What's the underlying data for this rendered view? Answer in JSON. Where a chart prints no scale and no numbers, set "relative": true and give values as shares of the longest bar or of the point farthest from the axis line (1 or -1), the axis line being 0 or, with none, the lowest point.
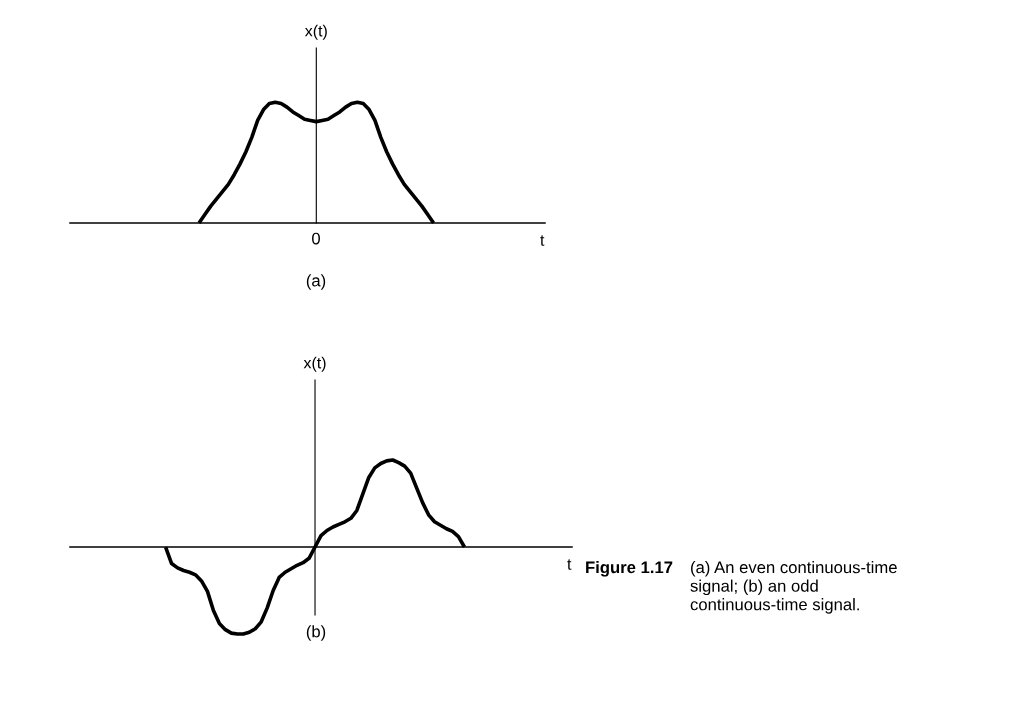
{
  "chart_data": [
    {
      "type": "line",
      "ylabel": "x(t)",
      "xlabel": "t",
      "relative": true,
      "line_style": "solid",
      "annotations": [
        "0",
        "(a)"
      ],
      "categories": [
        null,
        null,
        null,
        null,
        null,
        null,
        null,
        null,
        null,
        null,
        null,
        null,
        null,
        null,
        null,
        null,
        null,
        null,
        null,
        null,
        null,
        null,
        null,
        null,
        null,
        null,
        null,
        null,
        null,
        null,
        null,
        null,
        null,
        null,
        null,
        null,
        null,
        null,
        null,
        null,
        null,
        null,
        null,
        null,
        null,
        null,
        null,
        null,
        null,
        null,
        null,
        null,
        null,
        null,
        null,
        null,
        null,
        null,
        null,
        null,
        null,
        null,
        null,
        null,
        null,
        null,
        null,
        null,
        null,
        null,
        null,
        null,
        null,
        null,
        null,
        null,
        null,
        null,
        null,
        null,
        null,
        null
      ],
      "series": [
        {
          "color": "#000000",
          "values": [
            null,
            null,
            null,
            null,
            null,
            null,
            null,
            null,
            null,
            null,
            null,
            null,
            null,
            null,
            null,
            null,
            null,
            null,
            null,
            null,
            null,
            null,
            0,
            0.07,
            0.14,
            0.2,
            0.26,
            0.32,
            0.4,
            0.49,
            0.59,
            0.71,
            0.85,
            0.94,
            0.99,
            1,
            0.99,
            0.96,
            0.92,
            0.89,
            0.86,
            0.85,
            0.84,
            0.85,
            0.86,
            0.89,
            0.92,
            0.96,
            0.99,
            1,
            0.99,
            0.94,
            0.85,
            0.71,
            0.59,
            0.49,
            0.4,
            0.32,
            0.26,
            0.2,
            0.14,
            0.07,
            0,
            null,
            null,
            null,
            null,
            null,
            null,
            null,
            null,
            null,
            null,
            null,
            null,
            null,
            null,
            null,
            null,
            null,
            null,
            null
          ]
        }
      ]
    },
    {
      "type": "line",
      "ylabel": "x(t)",
      "xlabel": "t",
      "relative": true,
      "line_style": "solid",
      "annotations": [
        "(b)",
        "Figure 1.17",
        "(a) An even continuous-time signal; (b) an odd continuous-time signal."
      ],
      "categories": [
        null,
        null,
        null,
        null,
        null,
        null,
        null,
        null,
        null,
        null,
        null,
        null,
        null,
        null,
        null,
        null,
        null,
        null,
        null,
        null,
        null,
        null,
        null,
        null,
        null,
        null,
        null,
        null,
        null,
        null,
        null,
        null,
        null,
        null,
        null,
        null,
        null,
        null,
        null,
        null,
        null,
        null,
        null,
        null,
        null,
        null,
        null,
        null,
        null,
        null,
        null,
        null,
        null,
        null,
        null,
        null,
        null,
        null,
        null,
        null,
        null,
        null,
        null,
        null,
        null,
        null,
        null,
        null,
        null,
        null,
        null,
        null,
        null,
        null,
        null,
        null,
        null,
        null,
        null,
        null,
        null,
        null,
        null,
        null,
        null
      ],
      "series": [
        {
          "color": "#000000",
          "values": [
            null,
            null,
            null,
            null,
            null,
            null,
            null,
            null,
            null,
            null,
            null,
            null,
            null,
            null,
            null,
            null,
            0,
            -0.19,
            -0.24,
            -0.27,
            -0.29,
            -0.32,
            -0.39,
            -0.51,
            -0.73,
            -0.88,
            -0.95,
            -0.99,
            -1,
            -1,
            -0.98,
            -0.94,
            -0.86,
            -0.7,
            -0.5,
            -0.35,
            -0.29,
            -0.25,
            -0.21,
            -0.18,
            -0.13,
            0,
            0.13,
            0.19,
            0.23,
            0.26,
            0.29,
            0.33,
            0.42,
            0.61,
            0.8,
            0.91,
            0.96,
            0.99,
            1,
            0.97,
            0.93,
            0.85,
            0.68,
            0.51,
            0.37,
            0.29,
            0.25,
            0.21,
            0.18,
            0.12,
            0,
            null,
            null,
            null,
            null,
            null,
            null,
            null,
            null,
            null,
            null,
            null,
            null,
            null,
            null,
            null,
            null,
            null,
            null
          ]
        }
      ]
    }
  ]
}
